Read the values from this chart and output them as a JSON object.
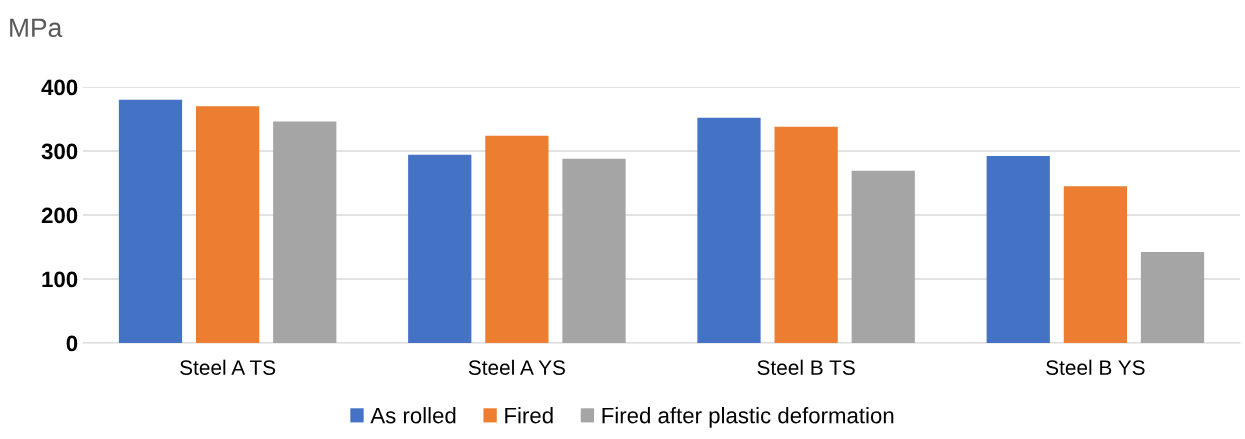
{
  "chart_data": {
    "type": "bar",
    "ylabel": "MPa",
    "categories": [
      "Steel A TS",
      "Steel A YS",
      "Steel B TS",
      "Steel B YS"
    ],
    "series": [
      {
        "name": "As rolled",
        "color": "#4472c4",
        "values": [
          380,
          294,
          352,
          292
        ]
      },
      {
        "name": "Fired",
        "color": "#ed7d31",
        "values": [
          370,
          324,
          338,
          245
        ]
      },
      {
        "name": "Fired after plastic deformation",
        "color": "#a5a5a5",
        "values": [
          346,
          288,
          269,
          142
        ]
      }
    ],
    "ylim": [
      0,
      400
    ],
    "yticks": [
      0,
      100,
      200,
      300,
      400
    ],
    "grid": "y",
    "legend": "bottom"
  }
}
